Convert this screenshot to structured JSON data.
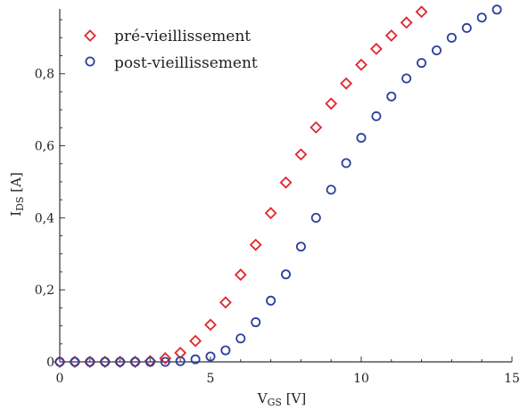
{
  "chart_data": {
    "type": "scatter",
    "xlabel": {
      "main": "V",
      "sub": "GS",
      "unit": " [V]"
    },
    "ylabel": {
      "main": "I",
      "sub": "DS",
      "unit": " [A]"
    },
    "xlim": [
      0,
      15
    ],
    "ylim": [
      0,
      0.98
    ],
    "xticks": [
      0,
      5,
      10,
      15
    ],
    "xtick_labels": [
      "0",
      "5",
      "10",
      "15"
    ],
    "yticks": [
      0,
      0.2,
      0.4,
      0.6,
      0.8
    ],
    "ytick_labels": [
      "0",
      "0,2",
      "0,4",
      "0,6",
      "0,8"
    ],
    "legend_position": "top-left",
    "grid": false,
    "series": [
      {
        "name": "pré-vieillissement",
        "marker": "diamond",
        "color": "#e0262b",
        "x": [
          0,
          0.5,
          1,
          1.5,
          2,
          2.5,
          3,
          3.5,
          4,
          4.5,
          5,
          5.5,
          6,
          6.5,
          7,
          7.5,
          8,
          8.5,
          9,
          9.5,
          10,
          10.5,
          11,
          11.5,
          12
        ],
        "y": [
          0,
          0,
          0,
          0,
          0,
          0,
          0.002,
          0.01,
          0.025,
          0.058,
          0.103,
          0.165,
          0.242,
          0.325,
          0.413,
          0.498,
          0.576,
          0.651,
          0.717,
          0.773,
          0.825,
          0.869,
          0.906,
          0.942,
          0.972
        ]
      },
      {
        "name": "post-vieillissement",
        "marker": "circle",
        "color": "#2b3f9e",
        "x": [
          0,
          0.5,
          1,
          1.5,
          2,
          2.5,
          3,
          3.5,
          4,
          4.5,
          5,
          5.5,
          6,
          6.5,
          7,
          7.5,
          8,
          8.5,
          9,
          9.5,
          10,
          10.5,
          11,
          11.5,
          12,
          12.5,
          13,
          13.5,
          14,
          14.5
        ],
        "y": [
          0,
          0,
          0,
          0,
          0,
          0,
          0,
          0,
          0.002,
          0.007,
          0.015,
          0.032,
          0.065,
          0.11,
          0.17,
          0.243,
          0.32,
          0.4,
          0.478,
          0.552,
          0.622,
          0.682,
          0.737,
          0.787,
          0.83,
          0.865,
          0.9,
          0.927,
          0.956,
          0.978
        ]
      }
    ]
  }
}
